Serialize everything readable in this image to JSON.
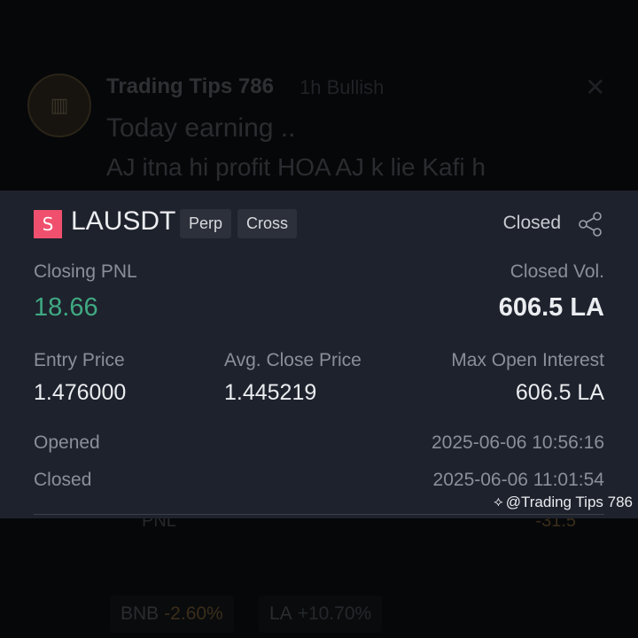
{
  "post": {
    "author": "Trading Tips 786",
    "time": "1h",
    "sentiment": "Bullish",
    "line1": "Today earning ..",
    "line2": "AJ itna hi profit HOA AJ k lie Kafi h"
  },
  "card": {
    "side_badge": "S",
    "symbol": "LAUSDT",
    "tags": [
      "Perp",
      "Cross"
    ],
    "status": "Closed",
    "closing_pnl_label": "Closing PNL",
    "closing_pnl": "18.66",
    "closed_vol_label": "Closed Vol.",
    "closed_vol": "606.5 LA",
    "entry_price_label": "Entry Price",
    "entry_price": "1.476000",
    "avg_close_label": "Avg. Close Price",
    "avg_close": "1.445219",
    "max_oi_label": "Max Open Interest",
    "max_oi": "606.5 LA",
    "opened_label": "Opened",
    "opened": "2025-06-06 10:56:16",
    "closed_label": "Closed",
    "closed": "2025-06-06 11:01:54",
    "watermark": "@Trading Tips 786"
  },
  "behind": {
    "pnl_label": "PNL",
    "pnl_value": "-31.5",
    "chips": [
      {
        "coin": "BNB",
        "change": "-2.60%"
      },
      {
        "coin": "LA",
        "change": "+10.70%"
      }
    ]
  },
  "colors": {
    "pnl_green": "#3fa982",
    "short_red": "#f0506e",
    "card_bg": "#1e222d"
  }
}
